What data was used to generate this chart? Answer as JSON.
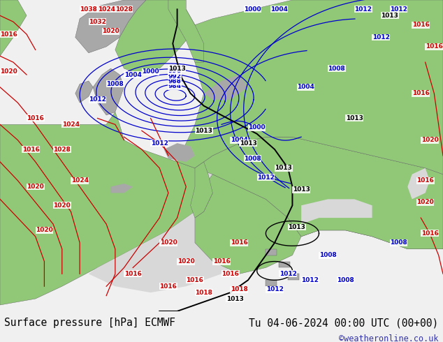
{
  "title_left": "Surface pressure [hPa] ECMWF",
  "title_right": "Tu 04-06-2024 00:00 UTC (00+00)",
  "watermark": "©weatheronline.co.uk",
  "footer_text_color": "#000000",
  "watermark_color": "#3333aa",
  "title_fontsize": 10.5,
  "watermark_fontsize": 8.5,
  "figsize": [
    6.34,
    4.9
  ],
  "dpi": 100,
  "ocean_color": "#d8d8d8",
  "land_green": "#90c878",
  "mountain_grey": "#a8a8a8",
  "contour_blue": "#0000cc",
  "contour_red": "#cc0000",
  "contour_black": "#000000",
  "label_fontsize": 6.5,
  "footer_bg": "#f0f0f0"
}
